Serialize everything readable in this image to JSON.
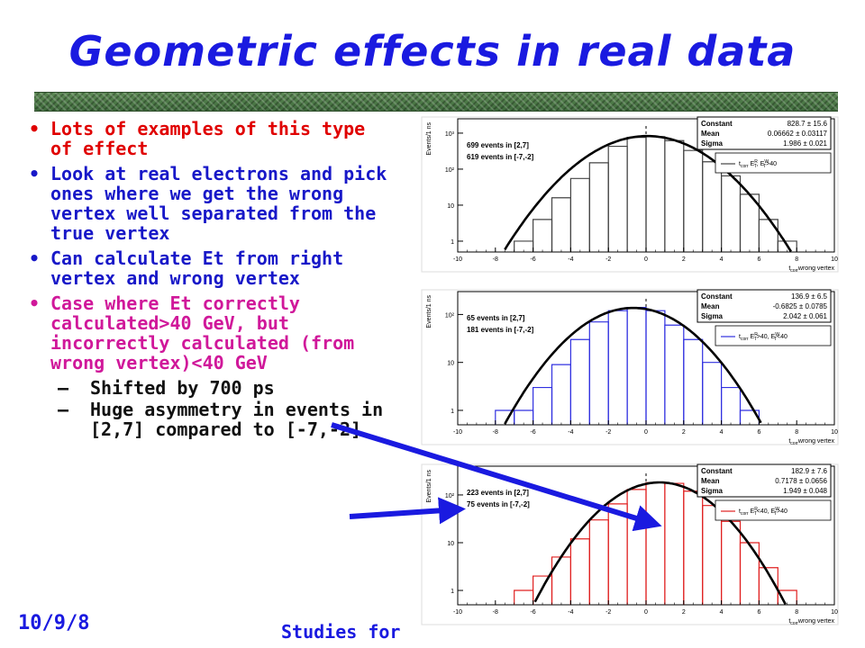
{
  "title": "Geometric effects in real data",
  "bullets": [
    {
      "text": "Lots of examples of this type of effect",
      "color": "#e00000"
    },
    {
      "text": "Look at real electrons and pick ones where we get the wrong vertex well separated from the true vertex",
      "color": "#1818c8"
    },
    {
      "text": "Can calculate Et from right vertex and wrong vertex",
      "color": "#1818c8"
    },
    {
      "text": "Case where Et correctly calculated>40 GeV, but incorrectly calculated (from wrong vertex)<40 GeV",
      "color": "#d0189a"
    }
  ],
  "subbullets": [
    {
      "text": "Shifted by 700 ps"
    },
    {
      "text": "Huge asymmetry in events in [2,7] compared to [-7,-2]"
    }
  ],
  "bullet_glyph": "•",
  "sub_glyph": "–",
  "footer": {
    "date": "10/9/8",
    "text": "Studies for"
  },
  "chart_data": [
    {
      "type": "histogram",
      "hist_color": "#444444",
      "ylabel": "Events/1 ns",
      "xlabel_parts": [
        "t",
        "corr",
        "wrong vertex"
      ],
      "xlim": [
        -10,
        10
      ],
      "ylog": true,
      "yticks": [
        {
          "v": 1,
          "l": "1"
        },
        {
          "v": 10,
          "l": "10"
        },
        {
          "v": 100,
          "l": "10²"
        },
        {
          "v": 1000,
          "l": "10³"
        }
      ],
      "xticks": [
        {
          "v": -10,
          "l": "-10"
        },
        {
          "v": -8,
          "l": "-8"
        },
        {
          "v": -6,
          "l": "-6"
        },
        {
          "v": -4,
          "l": "-4"
        },
        {
          "v": -2,
          "l": "-2"
        },
        {
          "v": 0,
          "l": "0"
        },
        {
          "v": 2,
          "l": "2"
        },
        {
          "v": 4,
          "l": "4"
        },
        {
          "v": 6,
          "l": "6"
        },
        {
          "v": 8,
          "l": "8"
        },
        {
          "v": 10,
          "l": "10"
        }
      ],
      "ylim": [
        0.5,
        2500
      ],
      "bins": [
        [
          -7,
          -6,
          1
        ],
        [
          -6,
          -5,
          4
        ],
        [
          -5,
          -4,
          16
        ],
        [
          -4,
          -3,
          55
        ],
        [
          -3,
          -2,
          150
        ],
        [
          -2,
          -1,
          430
        ],
        [
          -1,
          0,
          760
        ],
        [
          0,
          1,
          800
        ],
        [
          1,
          2,
          620
        ],
        [
          2,
          3,
          330
        ],
        [
          3,
          4,
          160
        ],
        [
          4,
          5,
          65
        ],
        [
          5,
          6,
          20
        ],
        [
          6,
          7,
          4
        ],
        [
          7,
          8,
          1
        ]
      ],
      "fit": {
        "constant": 828.7,
        "mean": 0.06662,
        "sigma": 1.986
      },
      "stats": [
        {
          "name": "Constant",
          "value": "828.7 ± 15.6"
        },
        {
          "name": "Mean",
          "value": "0.06662 ± 0.03117"
        },
        {
          "name": "Sigma",
          "value": "1.986 ± 0.021"
        }
      ],
      "counts": [
        "699 events in [2,7]",
        "619 events in [-7,-2]"
      ],
      "legend_parts": [
        "t",
        "corr",
        " E",
        "R",
        "T",
        ", E",
        "W",
        "T",
        ">40"
      ]
    },
    {
      "type": "histogram",
      "hist_color": "#3030e0",
      "ylabel": "Events/1 ns",
      "xlabel_parts": [
        "t",
        "corr",
        "wrong vertex"
      ],
      "xlim": [
        -10,
        10
      ],
      "ylog": true,
      "yticks": [
        {
          "v": 1,
          "l": "1"
        },
        {
          "v": 10,
          "l": "10"
        },
        {
          "v": 100,
          "l": "10²"
        }
      ],
      "xticks": [
        {
          "v": -10,
          "l": "-10"
        },
        {
          "v": -8,
          "l": "-8"
        },
        {
          "v": -6,
          "l": "-6"
        },
        {
          "v": -4,
          "l": "-4"
        },
        {
          "v": -2,
          "l": "-2"
        },
        {
          "v": 0,
          "l": "0"
        },
        {
          "v": 2,
          "l": "2"
        },
        {
          "v": 4,
          "l": "4"
        },
        {
          "v": 6,
          "l": "6"
        },
        {
          "v": 8,
          "l": "8"
        },
        {
          "v": 10,
          "l": "10"
        }
      ],
      "ylim": [
        0.5,
        300
      ],
      "bins": [
        [
          -8,
          -7,
          1
        ],
        [
          -7,
          -6,
          1
        ],
        [
          -6,
          -5,
          3
        ],
        [
          -5,
          -4,
          9
        ],
        [
          -4,
          -3,
          30
        ],
        [
          -3,
          -2,
          70
        ],
        [
          -2,
          -1,
          120
        ],
        [
          -1,
          0,
          140
        ],
        [
          0,
          1,
          120
        ],
        [
          1,
          2,
          60
        ],
        [
          2,
          3,
          30
        ],
        [
          3,
          4,
          10
        ],
        [
          4,
          5,
          3
        ],
        [
          5,
          6,
          1
        ]
      ],
      "fit": {
        "constant": 136.9,
        "mean": -0.6825,
        "sigma": 2.042
      },
      "stats": [
        {
          "name": "Constant",
          "value": "136.9 ± 6.5"
        },
        {
          "name": "Mean",
          "value": "-0.6825 ± 0.0785"
        },
        {
          "name": "Sigma",
          "value": "2.042 ± 0.061"
        }
      ],
      "counts": [
        "65 events in [2,7]",
        "181 events in [-7,-2]"
      ],
      "legend_parts": [
        "t",
        "corr",
        " E",
        "R",
        "T",
        ">40, E",
        "W",
        "T",
        "<40"
      ]
    },
    {
      "type": "histogram",
      "hist_color": "#e02020",
      "ylabel": "Events/1 ns",
      "xlabel_parts": [
        "t",
        "corr",
        "wrong vertex"
      ],
      "xlim": [
        -10,
        10
      ],
      "ylog": true,
      "yticks": [
        {
          "v": 1,
          "l": "1"
        },
        {
          "v": 10,
          "l": "10"
        },
        {
          "v": 100,
          "l": "10²"
        }
      ],
      "xticks": [
        {
          "v": -10,
          "l": "-10"
        },
        {
          "v": -8,
          "l": "-8"
        },
        {
          "v": -6,
          "l": "-6"
        },
        {
          "v": -4,
          "l": "-4"
        },
        {
          "v": -2,
          "l": "-2"
        },
        {
          "v": 0,
          "l": "0"
        },
        {
          "v": 2,
          "l": "2"
        },
        {
          "v": 4,
          "l": "4"
        },
        {
          "v": 6,
          "l": "6"
        },
        {
          "v": 8,
          "l": "8"
        },
        {
          "v": 10,
          "l": "10"
        }
      ],
      "ylim": [
        0.5,
        400
      ],
      "bins": [
        [
          -7,
          -6,
          1
        ],
        [
          -6,
          -5,
          2
        ],
        [
          -5,
          -4,
          5
        ],
        [
          -4,
          -3,
          12
        ],
        [
          -3,
          -2,
          30
        ],
        [
          -2,
          -1,
          65
        ],
        [
          -1,
          0,
          130
        ],
        [
          0,
          1,
          180
        ],
        [
          1,
          2,
          175
        ],
        [
          2,
          3,
          120
        ],
        [
          3,
          4,
          60
        ],
        [
          4,
          5,
          28
        ],
        [
          5,
          6,
          10
        ],
        [
          6,
          7,
          3
        ],
        [
          7,
          8,
          1
        ]
      ],
      "fit": {
        "constant": 182.9,
        "mean": 0.7178,
        "sigma": 1.949
      },
      "stats": [
        {
          "name": "Constant",
          "value": "182.9 ± 7.6"
        },
        {
          "name": "Mean",
          "value": "0.7178 ± 0.0656"
        },
        {
          "name": "Sigma",
          "value": "1.949 ± 0.048"
        }
      ],
      "counts": [
        "223 events in [2,7]",
        "75 events in [-7,-2]"
      ],
      "legend_parts": [
        "t",
        "corr",
        " E",
        "R",
        "T",
        "<40, E",
        "W",
        "T",
        ">40"
      ]
    }
  ]
}
